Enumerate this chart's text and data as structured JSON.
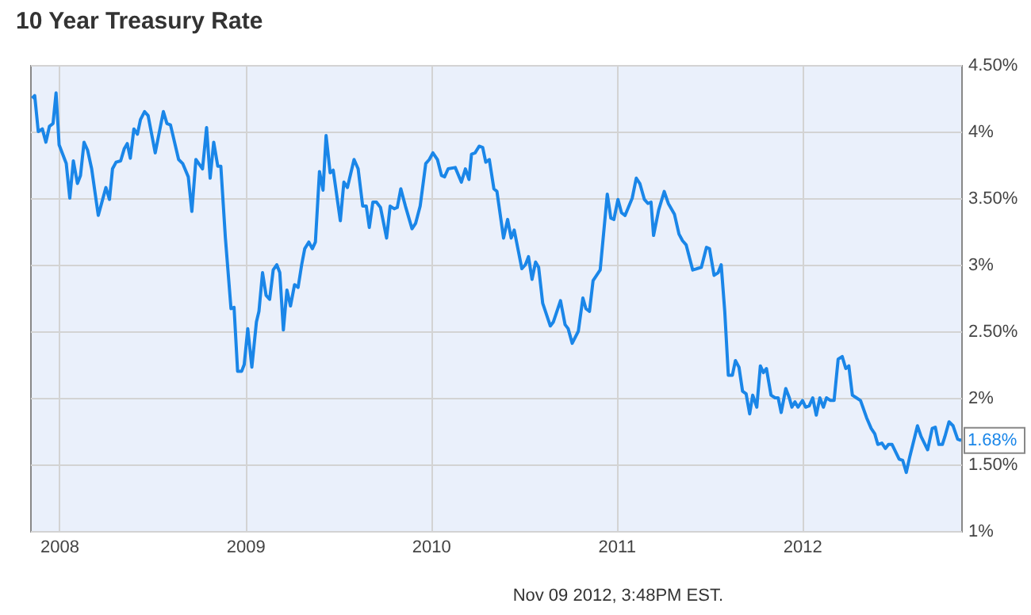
{
  "chart_data": {
    "type": "line",
    "title": "10 Year Treasury Rate",
    "x": [
      "2007-11-09",
      "2007-11-14",
      "2007-11-21",
      "2007-11-29",
      "2007-12-06",
      "2007-12-13",
      "2007-12-20",
      "2007-12-26",
      "2008-01-01",
      "2008-01-15",
      "2008-01-22",
      "2008-01-29",
      "2008-02-06",
      "2008-02-12",
      "2008-02-19",
      "2008-02-26",
      "2008-03-05",
      "2008-03-18",
      "2008-04-02",
      "2008-04-09",
      "2008-04-15",
      "2008-04-22",
      "2008-05-01",
      "2008-05-08",
      "2008-05-14",
      "2008-05-20",
      "2008-05-27",
      "2008-06-03",
      "2008-06-09",
      "2008-06-17",
      "2008-06-24",
      "2008-07-08",
      "2008-07-24",
      "2008-07-31",
      "2008-08-07",
      "2008-08-23",
      "2008-08-31",
      "2008-09-11",
      "2008-09-18",
      "2008-09-26",
      "2008-10-09",
      "2008-10-17",
      "2008-10-24",
      "2008-10-31",
      "2008-11-08",
      "2008-11-14",
      "2008-11-23",
      "2008-12-04",
      "2008-12-10",
      "2008-12-17",
      "2008-12-25",
      "2008-12-30",
      "2009-01-06",
      "2009-01-14",
      "2009-01-23",
      "2009-01-28",
      "2009-02-04",
      "2009-02-11",
      "2009-02-18",
      "2009-02-25",
      "2009-03-04",
      "2009-03-10",
      "2009-03-17",
      "2009-03-24",
      "2009-03-31",
      "2009-04-08",
      "2009-04-15",
      "2009-04-22",
      "2009-04-28",
      "2009-05-06",
      "2009-05-13",
      "2009-05-19",
      "2009-05-27",
      "2009-06-03",
      "2009-06-09",
      "2009-06-17",
      "2009-06-23",
      "2009-07-07",
      "2009-07-14",
      "2009-07-21",
      "2009-08-03",
      "2009-08-11",
      "2009-08-20",
      "2009-08-27",
      "2009-09-02",
      "2009-09-09",
      "2009-09-16",
      "2009-09-24",
      "2009-10-06",
      "2009-10-13",
      "2009-10-21",
      "2009-10-27",
      "2009-11-03",
      "2009-11-12",
      "2009-11-25",
      "2009-12-02",
      "2009-12-11",
      "2009-12-22",
      "2009-12-29",
      "2010-01-05",
      "2010-01-14",
      "2010-01-22",
      "2010-01-28",
      "2010-02-04",
      "2010-02-18",
      "2010-03-02",
      "2010-03-10",
      "2010-03-17",
      "2010-03-22",
      "2010-03-29",
      "2010-04-06",
      "2010-04-13",
      "2010-04-19",
      "2010-04-26",
      "2010-05-05",
      "2010-05-11",
      "2010-05-24",
      "2010-06-01",
      "2010-06-08",
      "2010-06-14",
      "2010-06-29",
      "2010-07-06",
      "2010-07-12",
      "2010-07-19",
      "2010-07-26",
      "2010-08-01",
      "2010-08-09",
      "2010-08-24",
      "2010-08-30",
      "2010-09-13",
      "2010-09-22",
      "2010-09-28",
      "2010-10-06",
      "2010-10-18",
      "2010-10-27",
      "2010-11-02",
      "2010-11-09",
      "2010-11-16",
      "2010-11-23",
      "2010-11-30",
      "2010-12-14",
      "2010-12-21",
      "2010-12-27",
      "2011-01-04",
      "2011-01-11",
      "2011-01-18",
      "2011-02-01",
      "2011-02-09",
      "2011-02-16",
      "2011-02-25",
      "2011-03-04",
      "2011-03-10",
      "2011-03-15",
      "2011-03-25",
      "2011-04-05",
      "2011-04-13",
      "2011-04-25",
      "2011-05-04",
      "2011-05-11",
      "2011-05-18",
      "2011-05-31",
      "2011-06-08",
      "2011-06-17",
      "2011-06-27",
      "2011-07-03",
      "2011-07-12",
      "2011-07-20",
      "2011-07-26",
      "2011-08-02",
      "2011-08-09",
      "2011-08-17",
      "2011-08-23",
      "2011-08-30",
      "2011-09-06",
      "2011-09-13",
      "2011-09-20",
      "2011-09-26",
      "2011-10-04",
      "2011-10-11",
      "2011-10-17",
      "2011-10-23",
      "2011-11-01",
      "2011-11-09",
      "2011-11-15",
      "2011-11-21",
      "2011-11-30",
      "2011-12-07",
      "2011-12-12",
      "2011-12-18",
      "2011-12-24",
      "2012-01-02",
      "2012-01-08",
      "2012-01-15",
      "2012-01-22",
      "2012-01-29",
      "2012-02-05",
      "2012-02-12",
      "2012-02-18",
      "2012-02-26",
      "2012-03-04",
      "2012-03-12",
      "2012-03-20",
      "2012-03-27",
      "2012-04-02",
      "2012-04-09",
      "2012-04-17",
      "2012-04-25",
      "2012-05-07",
      "2012-05-16",
      "2012-05-23",
      "2012-05-29",
      "2012-06-06",
      "2012-06-13",
      "2012-06-19",
      "2012-06-26",
      "2012-07-10",
      "2012-07-17",
      "2012-07-24",
      "2012-07-31",
      "2012-08-15",
      "2012-08-22",
      "2012-09-04",
      "2012-09-13",
      "2012-09-19",
      "2012-09-26",
      "2012-10-03",
      "2012-10-08",
      "2012-10-16",
      "2012-10-24",
      "2012-11-02",
      "2012-11-09"
    ],
    "series": [
      {
        "color": "#1a86e8",
        "values": [
          4.25,
          4.27,
          4.0,
          4.02,
          3.92,
          4.04,
          4.06,
          4.29,
          3.9,
          3.76,
          3.5,
          3.78,
          3.61,
          3.67,
          3.92,
          3.86,
          3.72,
          3.37,
          3.58,
          3.49,
          3.72,
          3.77,
          3.78,
          3.87,
          3.91,
          3.8,
          4.02,
          3.98,
          4.09,
          4.15,
          4.12,
          3.84,
          4.15,
          4.06,
          4.05,
          3.79,
          3.76,
          3.66,
          3.4,
          3.79,
          3.72,
          4.03,
          3.65,
          3.92,
          3.74,
          3.74,
          3.2,
          2.67,
          2.68,
          2.2,
          2.2,
          2.25,
          2.52,
          2.23,
          2.57,
          2.65,
          2.94,
          2.77,
          2.74,
          2.96,
          3.0,
          2.94,
          2.51,
          2.81,
          2.69,
          2.85,
          2.83,
          3.0,
          3.12,
          3.17,
          3.12,
          3.17,
          3.7,
          3.56,
          3.97,
          3.69,
          3.71,
          3.33,
          3.62,
          3.58,
          3.79,
          3.72,
          3.44,
          3.44,
          3.28,
          3.47,
          3.47,
          3.43,
          3.2,
          3.44,
          3.42,
          3.43,
          3.57,
          3.44,
          3.27,
          3.31,
          3.44,
          3.76,
          3.79,
          3.84,
          3.79,
          3.67,
          3.66,
          3.72,
          3.73,
          3.62,
          3.72,
          3.64,
          3.83,
          3.84,
          3.89,
          3.88,
          3.77,
          3.79,
          3.57,
          3.55,
          3.2,
          3.34,
          3.2,
          3.26,
          2.97,
          3.0,
          3.06,
          2.89,
          3.02,
          2.98,
          2.71,
          2.54,
          2.57,
          2.73,
          2.55,
          2.52,
          2.41,
          2.5,
          2.75,
          2.67,
          2.65,
          2.88,
          2.92,
          2.96,
          3.53,
          3.35,
          3.34,
          3.49,
          3.39,
          3.37,
          3.5,
          3.65,
          3.61,
          3.49,
          3.46,
          3.47,
          3.22,
          3.41,
          3.55,
          3.46,
          3.38,
          3.23,
          3.18,
          3.15,
          2.96,
          2.97,
          2.98,
          3.13,
          3.12,
          2.92,
          2.94,
          3.0,
          2.65,
          2.17,
          2.17,
          2.28,
          2.23,
          2.05,
          2.03,
          1.88,
          2.02,
          1.93,
          2.24,
          2.19,
          2.22,
          2.02,
          2.0,
          2.0,
          1.89,
          2.07,
          2.0,
          1.93,
          1.97,
          1.93,
          1.98,
          1.93,
          1.94,
          2.0,
          1.87,
          2.0,
          1.93,
          2.0,
          1.98,
          1.98,
          2.29,
          2.31,
          2.22,
          2.24,
          2.02,
          2.0,
          1.98,
          1.85,
          1.77,
          1.73,
          1.65,
          1.66,
          1.62,
          1.65,
          1.65,
          1.54,
          1.53,
          1.44,
          1.56,
          1.79,
          1.71,
          1.61,
          1.77,
          1.78,
          1.65,
          1.65,
          1.71,
          1.82,
          1.79,
          1.69,
          1.68
        ]
      }
    ],
    "xlim": [
      "2007-11-05",
      "2012-11-09"
    ],
    "xticks": [
      "2008",
      "2009",
      "2010",
      "2011",
      "2012"
    ],
    "ylim": [
      1,
      4.5
    ],
    "yticks": [
      {
        "value": 1,
        "label": "1%"
      },
      {
        "value": 1.5,
        "label": "1.50%"
      },
      {
        "value": 2,
        "label": "2%"
      },
      {
        "value": 2.5,
        "label": "2.50%"
      },
      {
        "value": 3,
        "label": "3%"
      },
      {
        "value": 3.5,
        "label": "3.50%"
      },
      {
        "value": 4,
        "label": "4%"
      },
      {
        "value": 4.5,
        "label": "4.50%"
      }
    ],
    "grid": true,
    "annotations": [
      "Nov 09 2012, 3:48PM EST.",
      {
        "text": "1.68%",
        "x": "2012-11-09",
        "y": 1.68
      }
    ]
  }
}
